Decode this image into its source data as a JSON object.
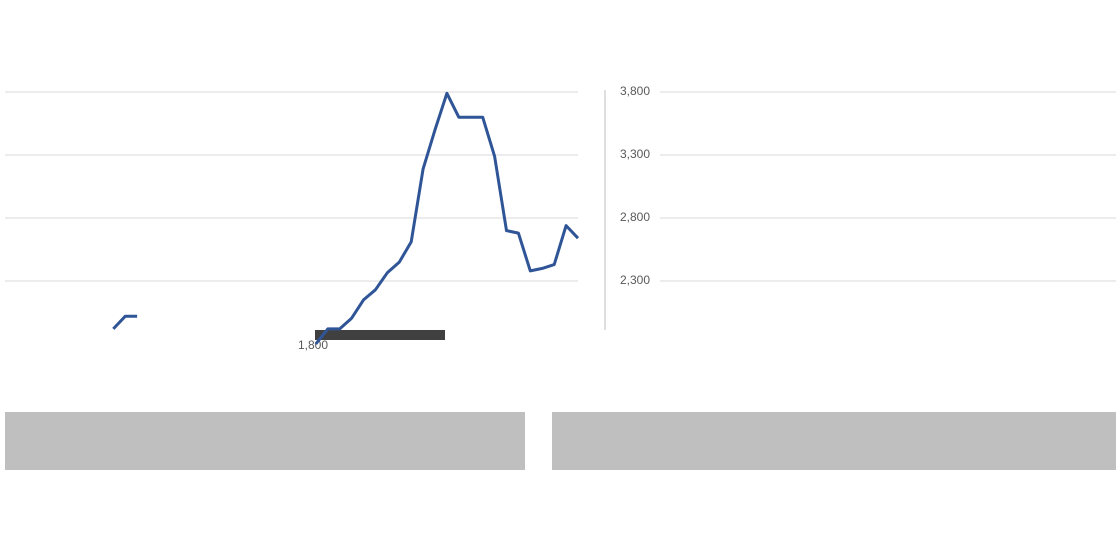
{
  "chart_data": {
    "type": "line",
    "categories": [
      null,
      null,
      null,
      null,
      null,
      null,
      null,
      null,
      null,
      null,
      null,
      null,
      null,
      null,
      null,
      null,
      null,
      null,
      null,
      null,
      null,
      null,
      null,
      null,
      null,
      null,
      null,
      null,
      null,
      null,
      null,
      null,
      null,
      null,
      null,
      null,
      null,
      null,
      null,
      null,
      null,
      null,
      null,
      null,
      null,
      null,
      null,
      null,
      null
    ],
    "series": [
      {
        "color": "#2f5597",
        "values": [
          null,
          null,
          null,
          null,
          null,
          null,
          null,
          null,
          null,
          1920,
          2020,
          2020,
          null,
          null,
          null,
          null,
          null,
          null,
          null,
          null,
          null,
          null,
          null,
          null,
          null,
          null,
          1800,
          1920,
          1920,
          2005,
          2150,
          2230,
          2365,
          2450,
          2610,
          3190,
          3500,
          3790,
          3600,
          3600,
          3600,
          3290,
          2700,
          2680,
          2380,
          2400,
          2430,
          2740,
          2640
        ]
      }
    ],
    "ylim": [
      1800,
      3900
    ],
    "yticks": [
      {
        "value": 1800,
        "label": "1,800"
      },
      {
        "value": 2300,
        "label": "2,300"
      },
      {
        "value": 2800,
        "label": "2,800"
      },
      {
        "value": 3300,
        "label": "3,300"
      },
      {
        "value": 3800,
        "label": "3,800"
      }
    ],
    "grid": true
  }
}
